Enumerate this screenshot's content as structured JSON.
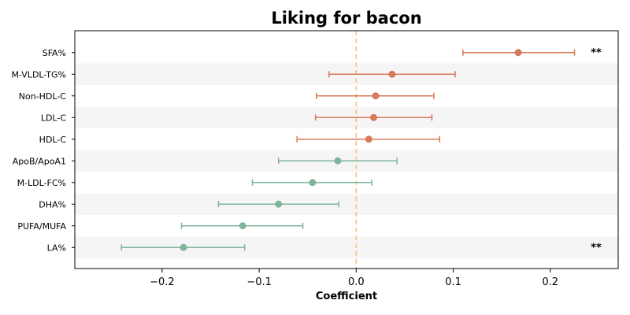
{
  "chart_data": {
    "type": "forest",
    "title": "Liking for bacon",
    "xlabel": "Coefficient",
    "xlim": [
      -0.29,
      0.27
    ],
    "xticks": [
      -0.2,
      -0.1,
      0.0,
      0.1,
      0.2
    ],
    "xtick_labels": [
      "−0.2",
      "−0.1",
      "0.0",
      "0.1",
      "0.2"
    ],
    "reference_line": 0.0,
    "grid": false,
    "colors": {
      "positive": "#d8785a",
      "negative": "#80b49a",
      "reference": "#f2c07a",
      "band": "#f5f5f5"
    },
    "rows": [
      {
        "label": "SFA%",
        "estimate": 0.167,
        "lower": 0.11,
        "upper": 0.225,
        "sig": "**"
      },
      {
        "label": "M-VLDL-TG%",
        "estimate": 0.037,
        "lower": -0.028,
        "upper": 0.102,
        "sig": ""
      },
      {
        "label": "Non-HDL-C",
        "estimate": 0.02,
        "lower": -0.041,
        "upper": 0.08,
        "sig": ""
      },
      {
        "label": "LDL-C",
        "estimate": 0.018,
        "lower": -0.042,
        "upper": 0.078,
        "sig": ""
      },
      {
        "label": "HDL-C",
        "estimate": 0.013,
        "lower": -0.061,
        "upper": 0.086,
        "sig": ""
      },
      {
        "label": "ApoB/ApoA1",
        "estimate": -0.019,
        "lower": -0.08,
        "upper": 0.042,
        "sig": ""
      },
      {
        "label": "M-LDL-FC%",
        "estimate": -0.045,
        "lower": -0.107,
        "upper": 0.016,
        "sig": ""
      },
      {
        "label": "DHA%",
        "estimate": -0.08,
        "lower": -0.142,
        "upper": -0.018,
        "sig": ""
      },
      {
        "label": "PUFA/MUFA",
        "estimate": -0.117,
        "lower": -0.18,
        "upper": -0.055,
        "sig": ""
      },
      {
        "label": "LA%",
        "estimate": -0.178,
        "lower": -0.242,
        "upper": -0.115,
        "sig": "**"
      }
    ]
  }
}
